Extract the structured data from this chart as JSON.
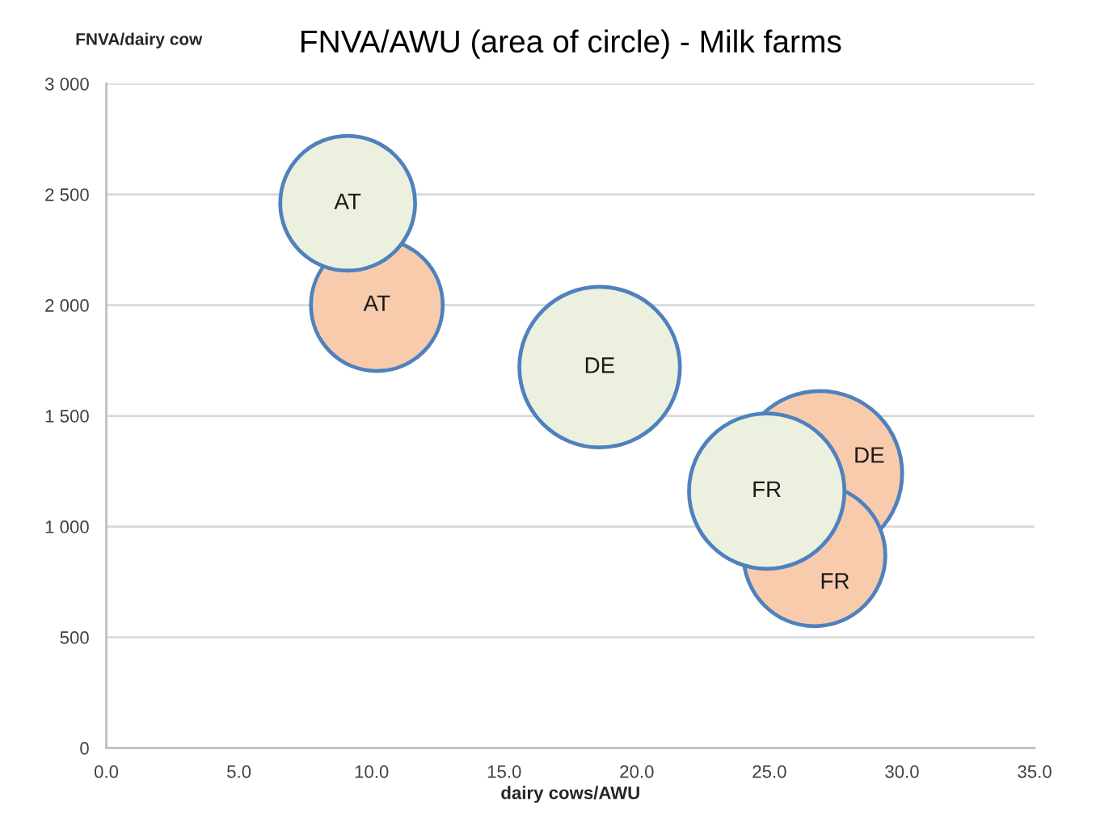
{
  "chart_data": {
    "type": "bubble",
    "title": "FNVA/AWU (area of circle) - Milk farms",
    "xlabel": "dairy cows/AWU",
    "ylabel": "FNVA/dairy cow",
    "xlim": [
      0,
      35
    ],
    "xticks": [
      {
        "value": 0,
        "label": "0.0"
      },
      {
        "value": 5,
        "label": "5.0"
      },
      {
        "value": 10,
        "label": "10.0"
      },
      {
        "value": 15,
        "label": "15.0"
      },
      {
        "value": 20,
        "label": "20.0"
      },
      {
        "value": 25,
        "label": "25.0"
      },
      {
        "value": 30,
        "label": "30.0"
      },
      {
        "value": 35,
        "label": "35.0"
      }
    ],
    "ylim": [
      0,
      3000
    ],
    "yticks": [
      0,
      500,
      {
        "value": 1000,
        "label": "1 000"
      },
      {
        "value": 1500,
        "label": "1 500"
      },
      {
        "value": 2000,
        "label": "2 000"
      },
      {
        "value": 2500,
        "label": "2 500"
      },
      {
        "value": 3000,
        "label": "3 000"
      }
    ],
    "grid": "y",
    "series": [
      {
        "color": "#f8cbad",
        "x": [
          10.2,
          26.9,
          26.7
        ],
        "values": [
          2000,
          1240,
          870
        ],
        "sizes": [
          0.64,
          1,
          0.74
        ]
      },
      {
        "color": "#ebf1de",
        "x": [
          9.1,
          18.6,
          24.9
        ],
        "values": [
          2460,
          1720,
          1160
        ],
        "sizes": [
          0.67,
          0.95,
          0.89
        ]
      }
    ],
    "annotations": [
      {
        "text": "AT",
        "x": 9.1,
        "y": 2460
      },
      {
        "text": "AT",
        "x": 10.2,
        "y": 2000
      },
      {
        "text": "DE",
        "x": 18.6,
        "y": 1720
      },
      {
        "text": "DE",
        "x": 26.9,
        "y": 1240
      },
      {
        "text": "FR",
        "x": 24.9,
        "y": 1160
      },
      {
        "text": "FR",
        "x": 26.7,
        "y": 870
      }
    ]
  }
}
